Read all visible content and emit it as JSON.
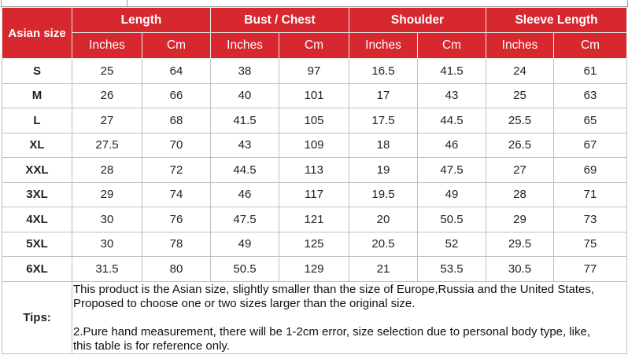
{
  "table": {
    "size_header": "Asian size",
    "groups": [
      "Length",
      "Bust / Chest",
      "Shoulder",
      "Sleeve Length"
    ],
    "units": [
      "Inches",
      "Cm",
      "Inches",
      "Cm",
      "Inches",
      "Cm",
      "Inches",
      "Cm"
    ],
    "rows": [
      {
        "size": "S",
        "values": [
          "25",
          "64",
          "38",
          "97",
          "16.5",
          "41.5",
          "24",
          "61"
        ]
      },
      {
        "size": "M",
        "values": [
          "26",
          "66",
          "40",
          "101",
          "17",
          "43",
          "25",
          "63"
        ]
      },
      {
        "size": "L",
        "values": [
          "27",
          "68",
          "41.5",
          "105",
          "17.5",
          "44.5",
          "25.5",
          "65"
        ]
      },
      {
        "size": "XL",
        "values": [
          "27.5",
          "70",
          "43",
          "109",
          "18",
          "46",
          "26.5",
          "67"
        ]
      },
      {
        "size": "XXL",
        "values": [
          "28",
          "72",
          "44.5",
          "113",
          "19",
          "47.5",
          "27",
          "69"
        ]
      },
      {
        "size": "3XL",
        "values": [
          "29",
          "74",
          "46",
          "117",
          "19.5",
          "49",
          "28",
          "71"
        ]
      },
      {
        "size": "4XL",
        "values": [
          "30",
          "76",
          "47.5",
          "121",
          "20",
          "50.5",
          "29",
          "73"
        ]
      },
      {
        "size": "5XL",
        "values": [
          "30",
          "78",
          "49",
          "125",
          "20.5",
          "52",
          "29.5",
          "75"
        ]
      },
      {
        "size": "6XL",
        "values": [
          "31.5",
          "80",
          "50.5",
          "129",
          "21",
          "53.5",
          "30.5",
          "77"
        ]
      }
    ]
  },
  "tips": {
    "label": "Tips:",
    "lines": [
      "This product is the Asian size, slightly smaller than the size of Europe,Russia and the United States,",
      "Proposed to choose one or two sizes larger than the original size.",
      "2.Pure hand measurement, there will be 1-2cm error, size selection due to personal body type, like,",
      "this table is for reference only."
    ]
  },
  "colors": {
    "header_bg": "#d7282f",
    "header_text": "#ffffff",
    "border": "#bfbfbf"
  }
}
